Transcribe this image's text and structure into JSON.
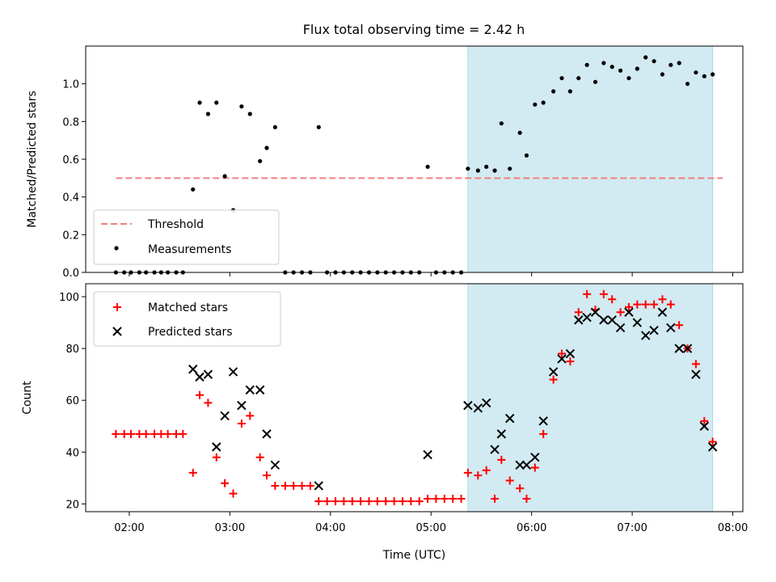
{
  "title": "Flux total observing time = 2.42 h",
  "colors": {
    "threshold": "#f08080",
    "measurement": "#000000",
    "matched": "#ff0000",
    "predicted": "#000000",
    "span": "#add8e6"
  },
  "chart_data": [
    {
      "type": "scatter",
      "ylabel": "Matched/Predicted stars",
      "xlabel": "",
      "xlim": [
        "01:34",
        "08:06"
      ],
      "ylim": [
        0,
        1.2
      ],
      "yticks": [
        "0.0",
        "0.2",
        "0.4",
        "0.6",
        "0.8",
        "1.0"
      ],
      "highlight_span": [
        "05:22",
        "07:48"
      ],
      "legend_position": "lower-left",
      "threshold": {
        "name": "Threshold",
        "y": 0.5,
        "x_range": [
          "01:52",
          "07:54"
        ]
      },
      "series": [
        {
          "name": "Measurements",
          "points": [
            [
              "01:52",
              0.0
            ],
            [
              "01:57",
              0.0
            ],
            [
              "02:01",
              0.0
            ],
            [
              "02:06",
              0.0
            ],
            [
              "02:10",
              0.0
            ],
            [
              "02:15",
              0.0
            ],
            [
              "02:19",
              0.0
            ],
            [
              "02:23",
              0.0
            ],
            [
              "02:28",
              0.0
            ],
            [
              "02:32",
              0.0
            ],
            [
              "02:38",
              0.44
            ],
            [
              "02:42",
              0.9
            ],
            [
              "02:47",
              0.84
            ],
            [
              "02:52",
              0.9
            ],
            [
              "02:57",
              0.51
            ],
            [
              "03:02",
              0.33
            ],
            [
              "03:07",
              0.88
            ],
            [
              "03:12",
              0.84
            ],
            [
              "03:18",
              0.59
            ],
            [
              "03:22",
              0.66
            ],
            [
              "03:27",
              0.77
            ],
            [
              "03:33",
              0.0
            ],
            [
              "03:38",
              0.0
            ],
            [
              "03:43",
              0.0
            ],
            [
              "03:48",
              0.0
            ],
            [
              "03:53",
              0.77
            ],
            [
              "03:58",
              0.0
            ],
            [
              "04:03",
              0.0
            ],
            [
              "04:08",
              0.0
            ],
            [
              "04:13",
              0.0
            ],
            [
              "04:18",
              0.0
            ],
            [
              "04:23",
              0.0
            ],
            [
              "04:28",
              0.0
            ],
            [
              "04:33",
              0.0
            ],
            [
              "04:38",
              0.0
            ],
            [
              "04:43",
              0.0
            ],
            [
              "04:48",
              0.0
            ],
            [
              "04:53",
              0.0
            ],
            [
              "04:58",
              0.56
            ],
            [
              "05:03",
              0.0
            ],
            [
              "05:08",
              0.0
            ],
            [
              "05:13",
              0.0
            ],
            [
              "05:18",
              0.0
            ],
            [
              "05:22",
              0.55
            ],
            [
              "05:28",
              0.54
            ],
            [
              "05:33",
              0.56
            ],
            [
              "05:38",
              0.54
            ],
            [
              "05:42",
              0.79
            ],
            [
              "05:47",
              0.55
            ],
            [
              "05:53",
              0.74
            ],
            [
              "05:57",
              0.62
            ],
            [
              "06:02",
              0.89
            ],
            [
              "06:07",
              0.9
            ],
            [
              "06:13",
              0.96
            ],
            [
              "06:18",
              1.03
            ],
            [
              "06:23",
              0.96
            ],
            [
              "06:28",
              1.03
            ],
            [
              "06:33",
              1.1
            ],
            [
              "06:38",
              1.01
            ],
            [
              "06:43",
              1.11
            ],
            [
              "06:48",
              1.09
            ],
            [
              "06:53",
              1.07
            ],
            [
              "06:58",
              1.03
            ],
            [
              "07:03",
              1.08
            ],
            [
              "07:08",
              1.14
            ],
            [
              "07:13",
              1.12
            ],
            [
              "07:18",
              1.05
            ],
            [
              "07:23",
              1.1
            ],
            [
              "07:28",
              1.11
            ],
            [
              "07:33",
              1.0
            ],
            [
              "07:38",
              1.06
            ],
            [
              "07:43",
              1.04
            ],
            [
              "07:48",
              1.05
            ]
          ]
        }
      ]
    },
    {
      "type": "scatter",
      "ylabel": "Count",
      "xlabel": "Time (UTC)",
      "xlim": [
        "01:34",
        "08:06"
      ],
      "ylim": [
        17,
        105
      ],
      "yticks": [
        "20",
        "40",
        "60",
        "80",
        "100"
      ],
      "xticks": [
        "02:00",
        "03:00",
        "04:00",
        "05:00",
        "06:00",
        "07:00",
        "08:00"
      ],
      "highlight_span": [
        "05:22",
        "07:48"
      ],
      "legend_position": "upper-left",
      "series": [
        {
          "name": "Matched stars",
          "marker": "plus",
          "points": [
            [
              "01:52",
              47
            ],
            [
              "01:57",
              47
            ],
            [
              "02:01",
              47
            ],
            [
              "02:06",
              47
            ],
            [
              "02:10",
              47
            ],
            [
              "02:15",
              47
            ],
            [
              "02:19",
              47
            ],
            [
              "02:23",
              47
            ],
            [
              "02:28",
              47
            ],
            [
              "02:32",
              47
            ],
            [
              "02:38",
              32
            ],
            [
              "02:42",
              62
            ],
            [
              "02:47",
              59
            ],
            [
              "02:52",
              38
            ],
            [
              "02:57",
              28
            ],
            [
              "03:02",
              24
            ],
            [
              "03:07",
              51
            ],
            [
              "03:12",
              54
            ],
            [
              "03:18",
              38
            ],
            [
              "03:22",
              31
            ],
            [
              "03:27",
              27
            ],
            [
              "03:33",
              27
            ],
            [
              "03:38",
              27
            ],
            [
              "03:43",
              27
            ],
            [
              "03:48",
              27
            ],
            [
              "03:53",
              21
            ],
            [
              "03:58",
              21
            ],
            [
              "04:03",
              21
            ],
            [
              "04:08",
              21
            ],
            [
              "04:13",
              21
            ],
            [
              "04:18",
              21
            ],
            [
              "04:23",
              21
            ],
            [
              "04:28",
              21
            ],
            [
              "04:33",
              21
            ],
            [
              "04:38",
              21
            ],
            [
              "04:43",
              21
            ],
            [
              "04:48",
              21
            ],
            [
              "04:53",
              21
            ],
            [
              "04:58",
              22
            ],
            [
              "05:03",
              22
            ],
            [
              "05:08",
              22
            ],
            [
              "05:13",
              22
            ],
            [
              "05:18",
              22
            ],
            [
              "05:22",
              32
            ],
            [
              "05:28",
              31
            ],
            [
              "05:33",
              33
            ],
            [
              "05:38",
              22
            ],
            [
              "05:42",
              37
            ],
            [
              "05:47",
              29
            ],
            [
              "05:53",
              26
            ],
            [
              "05:57",
              22
            ],
            [
              "06:02",
              34
            ],
            [
              "06:07",
              47
            ],
            [
              "06:13",
              68
            ],
            [
              "06:18",
              78
            ],
            [
              "06:23",
              75
            ],
            [
              "06:28",
              94
            ],
            [
              "06:33",
              101
            ],
            [
              "06:38",
              95
            ],
            [
              "06:43",
              101
            ],
            [
              "06:48",
              99
            ],
            [
              "06:53",
              94
            ],
            [
              "06:58",
              96
            ],
            [
              "07:03",
              97
            ],
            [
              "07:08",
              97
            ],
            [
              "07:13",
              97
            ],
            [
              "07:18",
              99
            ],
            [
              "07:23",
              97
            ],
            [
              "07:28",
              89
            ],
            [
              "07:33",
              80
            ],
            [
              "07:38",
              74
            ],
            [
              "07:43",
              52
            ],
            [
              "07:48",
              44
            ]
          ]
        },
        {
          "name": "Predicted stars",
          "marker": "x",
          "points": [
            [
              "02:38",
              72
            ],
            [
              "02:42",
              69
            ],
            [
              "02:47",
              70
            ],
            [
              "02:52",
              42
            ],
            [
              "02:57",
              54
            ],
            [
              "03:02",
              71
            ],
            [
              "03:07",
              58
            ],
            [
              "03:12",
              64
            ],
            [
              "03:18",
              64
            ],
            [
              "03:22",
              47
            ],
            [
              "03:27",
              35
            ],
            [
              "03:53",
              27
            ],
            [
              "04:58",
              39
            ],
            [
              "05:22",
              58
            ],
            [
              "05:28",
              57
            ],
            [
              "05:33",
              59
            ],
            [
              "05:38",
              41
            ],
            [
              "05:42",
              47
            ],
            [
              "05:47",
              53
            ],
            [
              "05:53",
              35
            ],
            [
              "05:57",
              35
            ],
            [
              "06:02",
              38
            ],
            [
              "06:07",
              52
            ],
            [
              "06:13",
              71
            ],
            [
              "06:18",
              76
            ],
            [
              "06:23",
              78
            ],
            [
              "06:28",
              91
            ],
            [
              "06:33",
              92
            ],
            [
              "06:38",
              94
            ],
            [
              "06:43",
              91
            ],
            [
              "06:48",
              91
            ],
            [
              "06:53",
              88
            ],
            [
              "06:58",
              94
            ],
            [
              "07:03",
              90
            ],
            [
              "07:08",
              85
            ],
            [
              "07:13",
              87
            ],
            [
              "07:18",
              94
            ],
            [
              "07:23",
              88
            ],
            [
              "07:28",
              80
            ],
            [
              "07:33",
              80
            ],
            [
              "07:38",
              70
            ],
            [
              "07:43",
              50
            ],
            [
              "07:48",
              42
            ]
          ]
        }
      ]
    }
  ]
}
